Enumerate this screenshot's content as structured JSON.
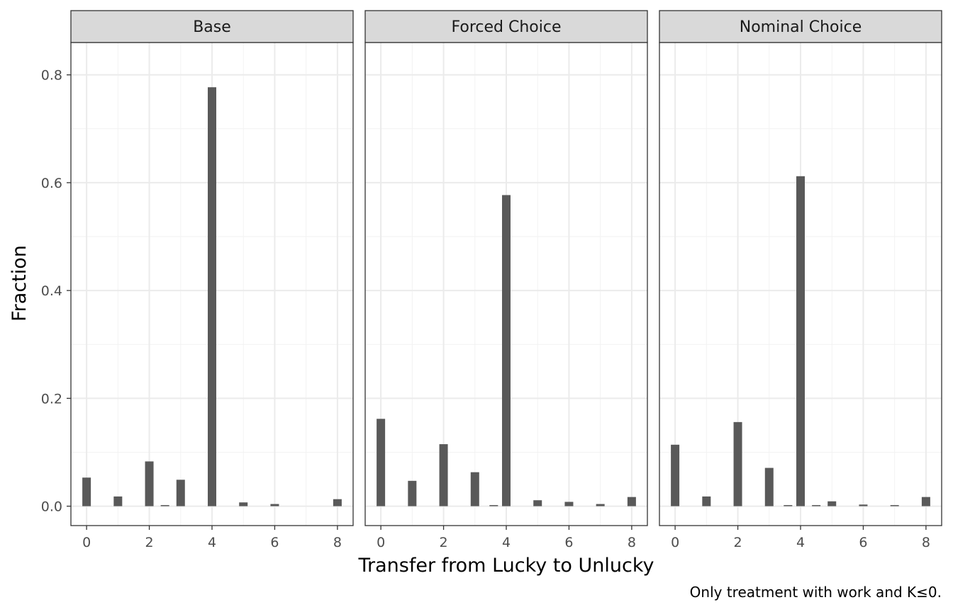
{
  "chart_data": {
    "type": "bar",
    "xlabel": "Transfer from Lucky to Unlucky",
    "ylabel": "Fraction",
    "caption": "Only treatment with work and K≤0.",
    "xlim": [
      -0.5,
      8.5
    ],
    "ylim": [
      -0.036,
      0.86
    ],
    "x_ticks": [
      0,
      2,
      4,
      6,
      8
    ],
    "y_ticks": [
      0.0,
      0.2,
      0.4,
      0.6,
      0.8
    ],
    "y_tick_labels": [
      "0.0",
      "0.2",
      "0.4",
      "0.6",
      "0.8"
    ],
    "grid": true,
    "bar_color": "#595959",
    "panels": [
      {
        "title": "Base",
        "x": [
          0,
          1,
          2,
          2.5,
          3,
          4,
          5,
          6,
          8
        ],
        "values": [
          0.053,
          0.018,
          0.083,
          0.002,
          0.049,
          0.777,
          0.007,
          0.004,
          0.013
        ]
      },
      {
        "title": "Forced Choice",
        "x": [
          0,
          1,
          2,
          3,
          3.6,
          4,
          5,
          6,
          7,
          8
        ],
        "values": [
          0.162,
          0.047,
          0.115,
          0.063,
          0.002,
          0.577,
          0.011,
          0.008,
          0.004,
          0.017
        ]
      },
      {
        "title": "Nominal Choice",
        "x": [
          0,
          1,
          2,
          3,
          3.6,
          4,
          4.5,
          5,
          6,
          7,
          8
        ],
        "values": [
          0.114,
          0.018,
          0.156,
          0.071,
          0.002,
          0.612,
          0.002,
          0.009,
          0.003,
          0.002,
          0.017
        ]
      }
    ]
  }
}
